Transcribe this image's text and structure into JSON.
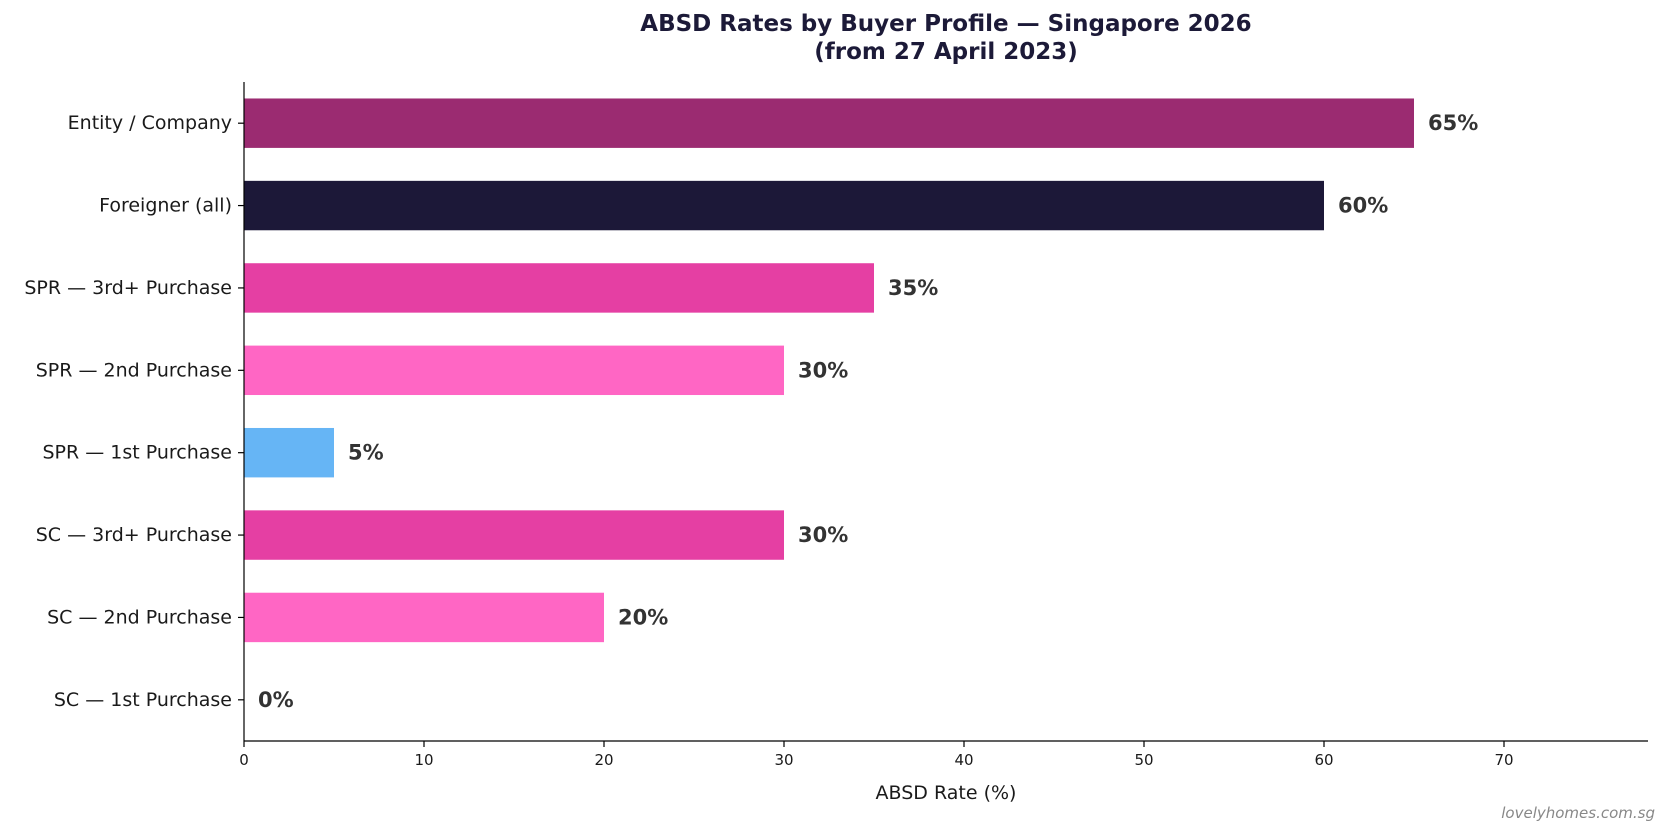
{
  "chart_data": {
    "type": "bar",
    "orientation": "horizontal",
    "title_lines": [
      "ABSD Rates by Buyer Profile — Singapore 2026",
      "(from 27 April 2023)"
    ],
    "xlabel": "ABSD Rate (%)",
    "ylabel": "",
    "xlim": [
      0,
      78
    ],
    "xticks": [
      0,
      10,
      20,
      30,
      40,
      50,
      60,
      70
    ],
    "grid": false,
    "categories": [
      "SC — 1st Purchase",
      "SC — 2nd Purchase",
      "SC — 3rd+ Purchase",
      "SPR — 1st Purchase",
      "SPR — 2nd Purchase",
      "SPR — 3rd+ Purchase",
      "Foreigner (all)",
      "Entity / Company"
    ],
    "values": [
      0,
      20,
      30,
      5,
      30,
      35,
      60,
      65
    ],
    "value_labels": [
      "0%",
      "20%",
      "30%",
      "5%",
      "30%",
      "35%",
      "60%",
      "65%"
    ],
    "colors": [
      "#ff66c4",
      "#ff66c4",
      "#e53fa3",
      "#66b5f5",
      "#ff66c4",
      "#e53fa3",
      "#1c1838",
      "#9b2b71"
    ]
  },
  "watermark": "lovelyhomes.com.sg"
}
